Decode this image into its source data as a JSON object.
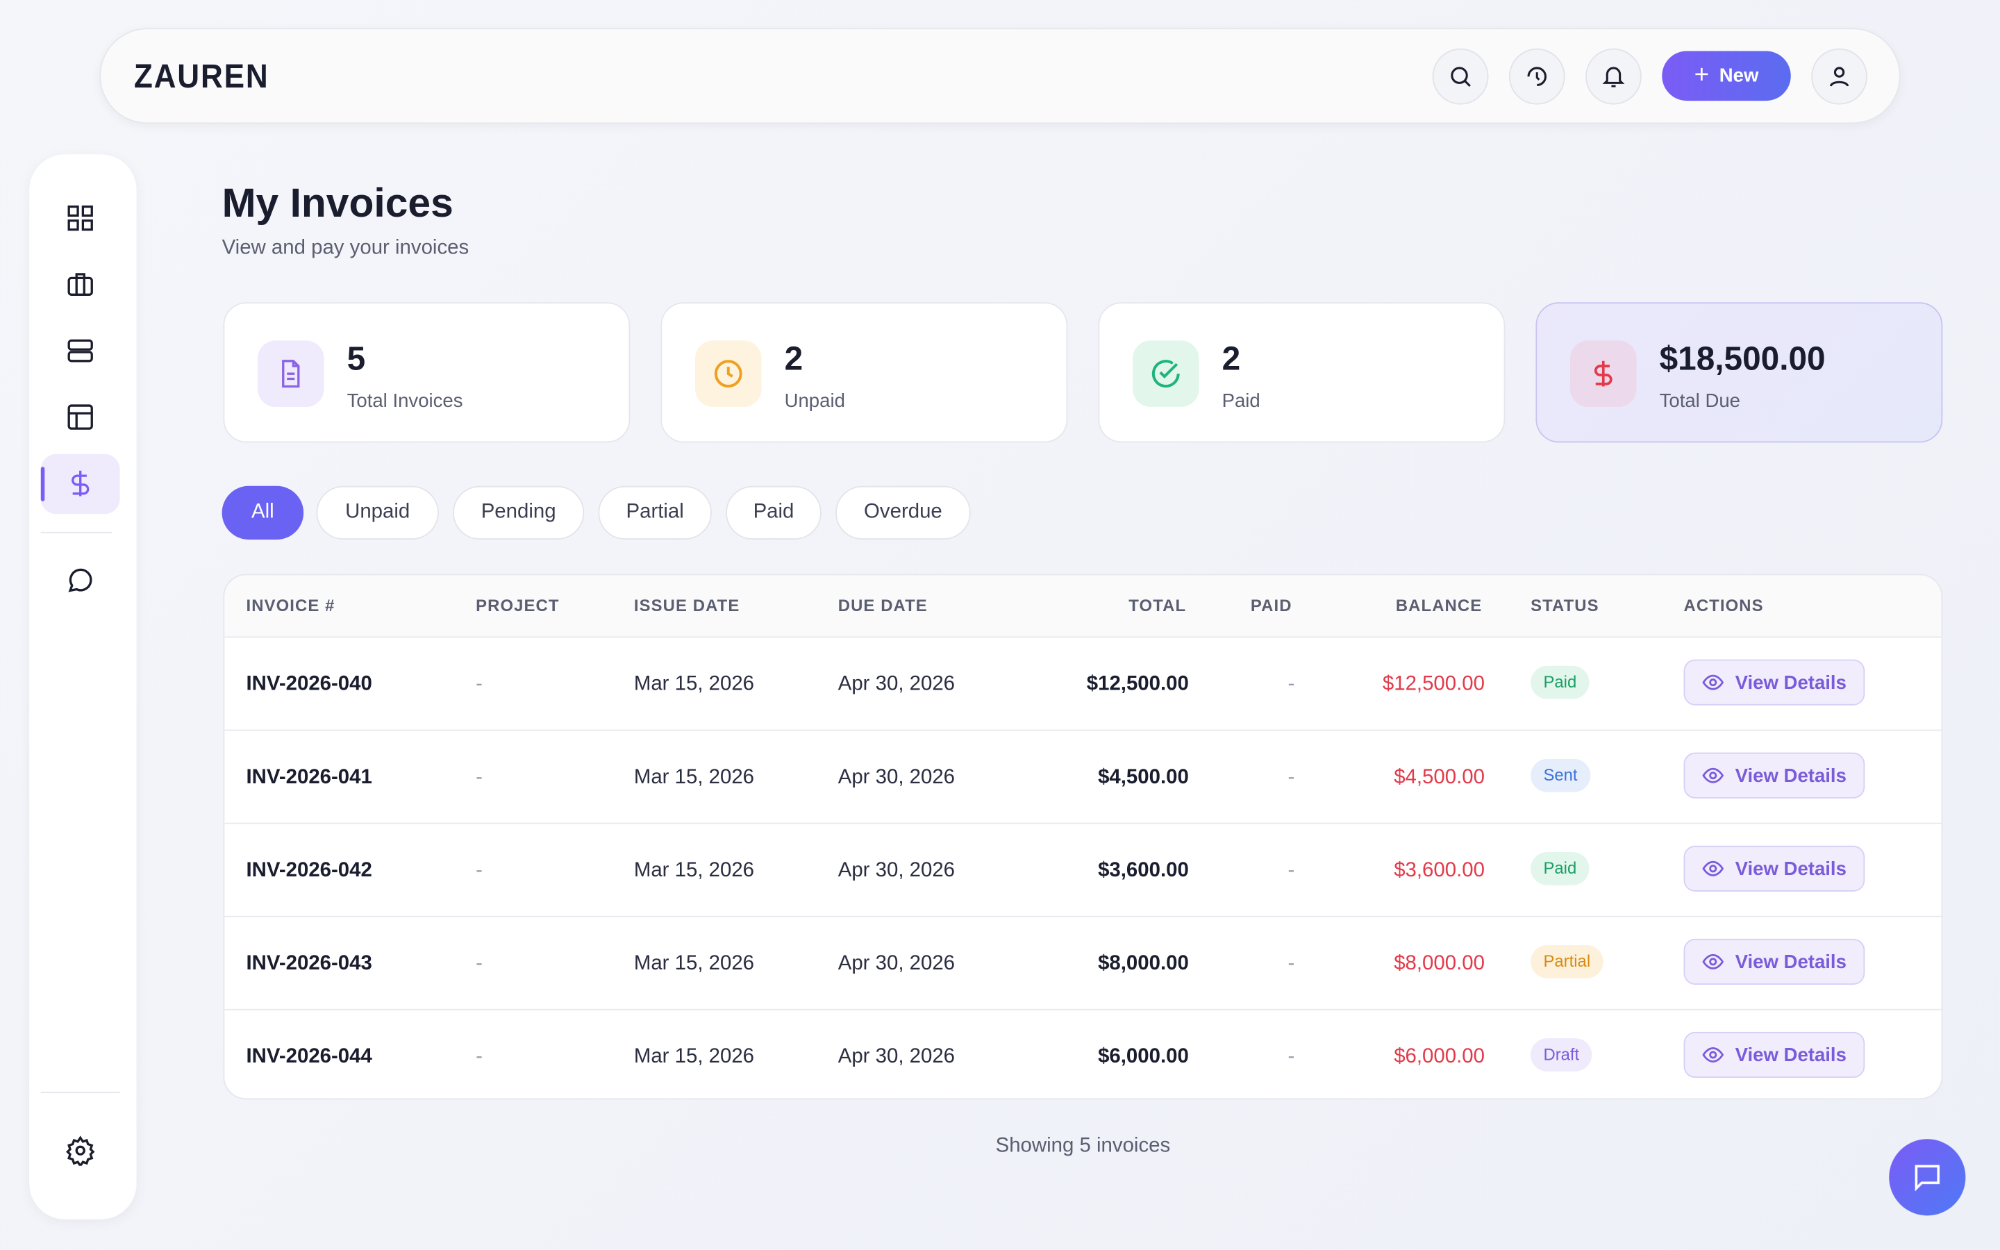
{
  "header": {
    "brand": "ZAUREN",
    "new_button": "New"
  },
  "page": {
    "title": "My Invoices",
    "subtitle": "View and pay your invoices"
  },
  "stats": [
    {
      "value": "5",
      "label": "Total Invoices"
    },
    {
      "value": "2",
      "label": "Unpaid"
    },
    {
      "value": "2",
      "label": "Paid"
    },
    {
      "value": "$18,500.00",
      "label": "Total Due"
    }
  ],
  "filters": [
    "All",
    "Unpaid",
    "Pending",
    "Partial",
    "Paid",
    "Overdue"
  ],
  "table": {
    "columns": [
      "INVOICE #",
      "PROJECT",
      "ISSUE DATE",
      "DUE DATE",
      "TOTAL",
      "PAID",
      "BALANCE",
      "STATUS",
      "ACTIONS"
    ],
    "rows": [
      [
        "INV-2026-040",
        "-",
        "Mar 15, 2026",
        "Apr 30, 2026",
        "$12,500.00",
        "-",
        "$12,500.00",
        "Paid",
        "View Details"
      ],
      [
        "INV-2026-041",
        "-",
        "Mar 15, 2026",
        "Apr 30, 2026",
        "$4,500.00",
        "-",
        "$4,500.00",
        "Sent",
        "View Details"
      ],
      [
        "INV-2026-042",
        "-",
        "Mar 15, 2026",
        "Apr 30, 2026",
        "$3,600.00",
        "-",
        "$3,600.00",
        "Paid",
        "View Details"
      ],
      [
        "INV-2026-043",
        "-",
        "Mar 15, 2026",
        "Apr 30, 2026",
        "$8,000.00",
        "-",
        "$8,000.00",
        "Partial",
        "View Details"
      ],
      [
        "INV-2026-044",
        "-",
        "Mar 15, 2026",
        "Apr 30, 2026",
        "$6,000.00",
        "-",
        "$6,000.00",
        "Draft",
        "View Details"
      ]
    ]
  },
  "footer": "Showing 5 invoices"
}
